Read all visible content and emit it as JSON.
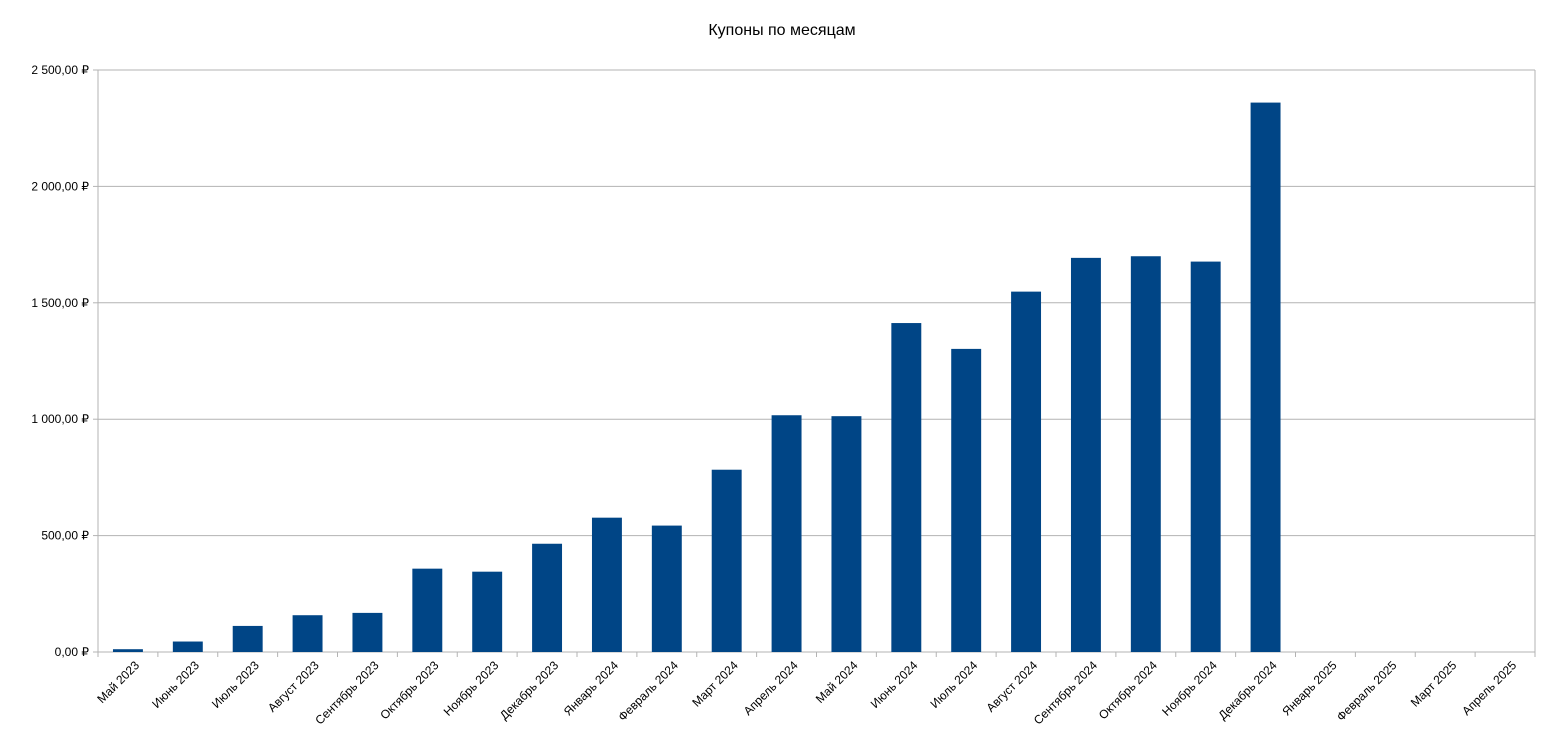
{
  "chart_data": {
    "type": "bar",
    "title": "Купоны по месяцам",
    "xlabel": "",
    "ylabel": "",
    "ylim": [
      0,
      2500
    ],
    "y_ticks": [
      0,
      500,
      1000,
      1500,
      2000,
      2500
    ],
    "y_tick_labels": [
      "0,00 ₽",
      "500,00 ₽",
      "1 000,00 ₽",
      "1 500,00 ₽",
      "2 000,00 ₽",
      "2 500,00 ₽"
    ],
    "grid": true,
    "legend": "none",
    "bar_color": "#004586",
    "categories": [
      "Май 2023",
      "Июнь 2023",
      "Июль 2023",
      "Август 2023",
      "Сентябрь 2023",
      "Октябрь 2023",
      "Ноябрь 2023",
      "Декабрь 2023",
      "Январь 2024",
      "Февраль 2024",
      "Март 2024",
      "Апрель 2024",
      "Май 2024",
      "Июнь 2024",
      "Июль 2024",
      "Август 2024",
      "Сентябрь 2024",
      "Октябрь 2024",
      "Ноябрь 2024",
      "Декабрь 2024",
      "Январь 2025",
      "Февраль 2025",
      "Март 2025",
      "Апрель 2025"
    ],
    "values": [
      12,
      45,
      112,
      158,
      168,
      358,
      345,
      465,
      577,
      543,
      783,
      1017,
      1013,
      1413,
      1302,
      1548,
      1693,
      1700,
      1677,
      2360,
      0,
      0,
      0,
      0
    ]
  }
}
